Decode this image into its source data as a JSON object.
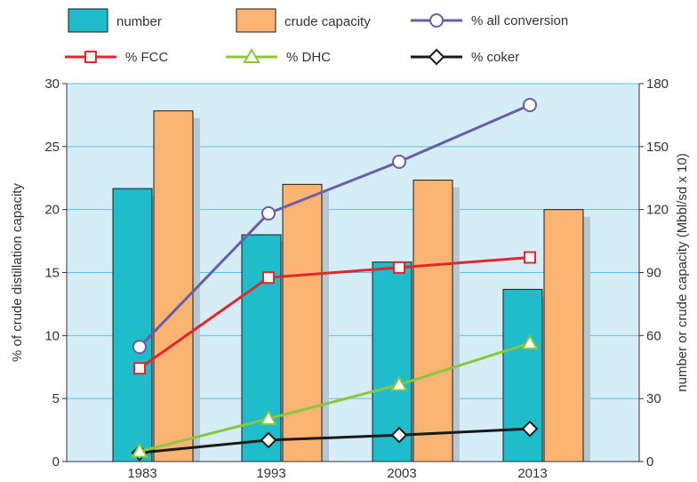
{
  "chart_data": {
    "type": "bar",
    "categories": [
      "1983",
      "1993",
      "2003",
      "2013"
    ],
    "bar_series": [
      {
        "name": "number",
        "axis": "right",
        "values": [
          130,
          108,
          95,
          82
        ],
        "color": "#1fbccc"
      },
      {
        "name": "crude capacity",
        "axis": "right",
        "values": [
          167,
          132,
          134,
          120
        ],
        "color": "#fbb471"
      }
    ],
    "line_series": [
      {
        "name": "% all conversion",
        "axis": "left",
        "values": [
          9.1,
          19.7,
          23.8,
          28.3
        ],
        "color": "#6a5ea8",
        "marker": "circle"
      },
      {
        "name": "% FCC",
        "axis": "left",
        "values": [
          7.4,
          14.6,
          15.4,
          16.2
        ],
        "color": "#e4262a",
        "marker": "square"
      },
      {
        "name": "% DHC",
        "axis": "left",
        "values": [
          0.8,
          3.4,
          6.1,
          9.4
        ],
        "color": "#8cc63f",
        "marker": "triangle"
      },
      {
        "name": "% coker",
        "axis": "left",
        "values": [
          0.7,
          1.7,
          2.1,
          2.6
        ],
        "color": "#1a1a1a",
        "marker": "diamond"
      }
    ],
    "ylabel": "% of crude distillation capacity",
    "y2label": "number or crude capacity (Mbbl/sd x 10)",
    "ylim": [
      0,
      30
    ],
    "y2lim": [
      0,
      180
    ],
    "yticks": [
      "0",
      "5",
      "10",
      "15",
      "20",
      "25",
      "30"
    ],
    "y2ticks": [
      "0",
      "30",
      "60",
      "90",
      "120",
      "150",
      "180"
    ],
    "grid": "horizontal",
    "legend_position": "top",
    "plot_background": "#d4edf7",
    "grid_color": "#55c3ea"
  }
}
